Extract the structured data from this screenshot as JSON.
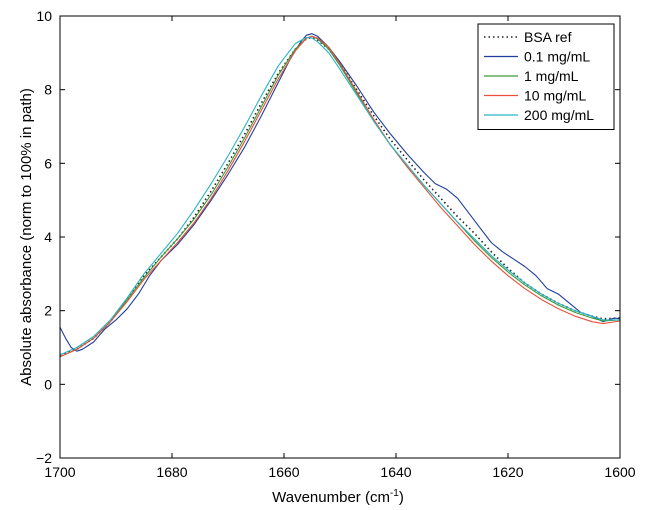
{
  "chart_data": {
    "type": "line",
    "xlabel": "Wavenumber (cm",
    "xlabel_sup": "-1",
    "xlabel_close": ")",
    "ylabel": "Absolute absorbance (norm to 100% in path)",
    "xlim": [
      1700,
      1600
    ],
    "ylim": [
      -2,
      10
    ],
    "x_ticks": [
      1700,
      1680,
      1660,
      1640,
      1620,
      1600
    ],
    "y_ticks": [
      -2,
      0,
      2,
      4,
      6,
      8,
      10
    ],
    "grid": false,
    "legend_position": "top-right",
    "series": [
      {
        "name": "BSA ref",
        "color": "#222222",
        "dash": "dotted",
        "x": [
          1700,
          1697,
          1694,
          1691,
          1688,
          1685,
          1682,
          1679,
          1676,
          1673,
          1670,
          1667,
          1664,
          1661,
          1658,
          1656,
          1655,
          1654,
          1652,
          1650,
          1647,
          1644,
          1641,
          1638,
          1635,
          1632,
          1629,
          1626,
          1623,
          1620,
          1617,
          1614,
          1611,
          1608,
          1605,
          1603,
          1600
        ],
        "y": [
          0.8,
          0.95,
          1.25,
          1.7,
          2.3,
          2.95,
          3.45,
          3.95,
          4.55,
          5.25,
          6.0,
          6.8,
          7.65,
          8.45,
          9.1,
          9.38,
          9.42,
          9.35,
          9.1,
          8.7,
          8.0,
          7.3,
          6.65,
          6.1,
          5.55,
          5.05,
          4.55,
          4.1,
          3.6,
          3.15,
          2.75,
          2.45,
          2.2,
          2.0,
          1.85,
          1.78,
          1.8
        ]
      },
      {
        "name": "0.1 mg/mL",
        "color": "#1f3f9a",
        "dash": "solid",
        "x": [
          1700,
          1699,
          1698,
          1697,
          1696,
          1694,
          1692,
          1690,
          1688,
          1686,
          1684,
          1682,
          1679,
          1676,
          1673,
          1670,
          1667,
          1664,
          1661,
          1659,
          1657,
          1656,
          1655,
          1654,
          1652,
          1650,
          1647,
          1644,
          1641,
          1638,
          1635,
          1633,
          1631,
          1629,
          1627,
          1625,
          1623,
          1621,
          1619,
          1617,
          1615,
          1613,
          1611,
          1609,
          1607,
          1605,
          1603,
          1601,
          1600
        ],
        "y": [
          1.55,
          1.25,
          1.0,
          0.9,
          0.95,
          1.15,
          1.5,
          1.75,
          2.05,
          2.45,
          2.95,
          3.35,
          3.8,
          4.35,
          5.0,
          5.7,
          6.45,
          7.3,
          8.2,
          8.8,
          9.3,
          9.48,
          9.52,
          9.45,
          9.15,
          8.75,
          8.1,
          7.4,
          6.8,
          6.25,
          5.75,
          5.45,
          5.3,
          5.05,
          4.65,
          4.25,
          3.85,
          3.6,
          3.4,
          3.2,
          2.95,
          2.6,
          2.45,
          2.2,
          1.95,
          1.85,
          1.7,
          1.8,
          1.78
        ]
      },
      {
        "name": "1 mg/mL",
        "color": "#3a9a3a",
        "dash": "solid",
        "x": [
          1700,
          1697,
          1694,
          1691,
          1688,
          1685,
          1682,
          1679,
          1676,
          1673,
          1670,
          1667,
          1664,
          1661,
          1658,
          1656,
          1655,
          1654,
          1652,
          1650,
          1647,
          1644,
          1641,
          1638,
          1635,
          1632,
          1629,
          1626,
          1623,
          1620,
          1617,
          1614,
          1611,
          1608,
          1605,
          1603,
          1600
        ],
        "y": [
          0.75,
          0.95,
          1.25,
          1.7,
          2.3,
          2.9,
          3.45,
          3.95,
          4.5,
          5.15,
          5.9,
          6.7,
          7.55,
          8.4,
          9.1,
          9.4,
          9.45,
          9.38,
          9.1,
          8.65,
          7.9,
          7.15,
          6.5,
          5.95,
          5.4,
          4.9,
          4.4,
          3.9,
          3.45,
          3.05,
          2.7,
          2.4,
          2.15,
          1.95,
          1.8,
          1.72,
          1.75
        ]
      },
      {
        "name": "10 mg/mL",
        "color": "#e8503a",
        "dash": "solid",
        "x": [
          1700,
          1697,
          1694,
          1691,
          1688,
          1685,
          1682,
          1679,
          1676,
          1673,
          1670,
          1667,
          1664,
          1661,
          1658,
          1656,
          1655,
          1654,
          1652,
          1650,
          1647,
          1644,
          1641,
          1638,
          1635,
          1632,
          1629,
          1626,
          1623,
          1620,
          1617,
          1614,
          1611,
          1608,
          1605,
          1603,
          1600
        ],
        "y": [
          0.75,
          0.95,
          1.25,
          1.7,
          2.25,
          2.85,
          3.35,
          3.85,
          4.4,
          5.05,
          5.8,
          6.6,
          7.45,
          8.3,
          9.05,
          9.4,
          9.45,
          9.4,
          9.15,
          8.7,
          7.95,
          7.2,
          6.5,
          5.9,
          5.35,
          4.8,
          4.3,
          3.8,
          3.35,
          2.95,
          2.6,
          2.3,
          2.05,
          1.85,
          1.7,
          1.65,
          1.72
        ]
      },
      {
        "name": "200 mg/mL",
        "color": "#2ab5c5",
        "dash": "solid",
        "x": [
          1700,
          1697,
          1694,
          1691,
          1688,
          1685,
          1682,
          1679,
          1676,
          1673,
          1670,
          1667,
          1664,
          1661,
          1658,
          1656,
          1655,
          1654,
          1652,
          1650,
          1647,
          1644,
          1641,
          1638,
          1635,
          1632,
          1629,
          1626,
          1623,
          1620,
          1617,
          1614,
          1611,
          1608,
          1605,
          1603,
          1600
        ],
        "y": [
          0.8,
          1.0,
          1.3,
          1.75,
          2.35,
          3.0,
          3.55,
          4.1,
          4.75,
          5.45,
          6.2,
          7.0,
          7.85,
          8.65,
          9.25,
          9.42,
          9.4,
          9.3,
          9.0,
          8.55,
          7.85,
          7.15,
          6.5,
          5.95,
          5.4,
          4.9,
          4.4,
          3.95,
          3.5,
          3.1,
          2.75,
          2.45,
          2.2,
          2.0,
          1.85,
          1.75,
          1.75
        ]
      }
    ]
  }
}
